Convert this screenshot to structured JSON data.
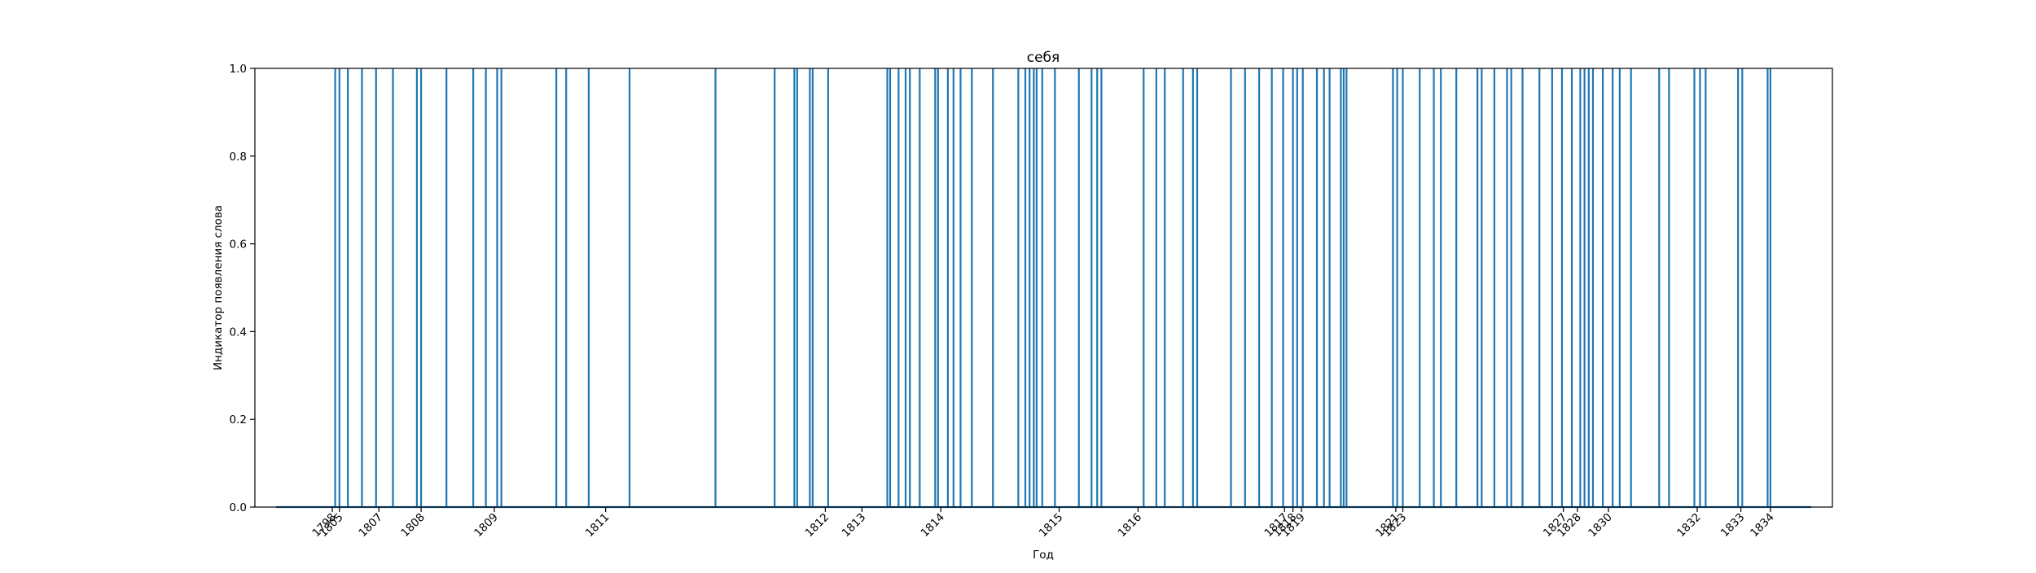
{
  "chart_data": {
    "type": "line",
    "title": "себя",
    "xlabel": "Год",
    "ylabel": "Индикатор появления слова",
    "ylim": [
      0,
      1
    ],
    "yticks": [
      "0.0",
      "0.2",
      "0.4",
      "0.6",
      "0.8",
      "1.0"
    ],
    "x_index_range": [
      -0.5,
      111.5
    ],
    "xticks": [
      {
        "index": 5,
        "label": "1798"
      },
      {
        "index": 5.5,
        "label": "1805"
      },
      {
        "index": 8.3,
        "label": "1807"
      },
      {
        "index": 11.3,
        "label": "1808"
      },
      {
        "index": 16.5,
        "label": "1809"
      },
      {
        "index": 24.4,
        "label": "1811"
      },
      {
        "index": 40,
        "label": "1812"
      },
      {
        "index": 42.6,
        "label": "1813"
      },
      {
        "index": 48.2,
        "label": "1814"
      },
      {
        "index": 56.6,
        "label": "1815"
      },
      {
        "index": 62.2,
        "label": "1816"
      },
      {
        "index": 72.6,
        "label": "1817"
      },
      {
        "index": 73.2,
        "label": "1818"
      },
      {
        "index": 73.8,
        "label": "1819"
      },
      {
        "index": 80.5,
        "label": "1821"
      },
      {
        "index": 81.0,
        "label": "1823"
      },
      {
        "index": 92.4,
        "label": "1827"
      },
      {
        "index": 93.4,
        "label": "1828"
      },
      {
        "index": 95.6,
        "label": "1830"
      },
      {
        "index": 101.9,
        "label": "1832"
      },
      {
        "index": 105.0,
        "label": "1833"
      },
      {
        "index": 107.1,
        "label": "1834"
      }
    ],
    "series": [
      {
        "color": "#1f77b4",
        "present_indices": [
          5.2,
          5.5,
          6.1,
          7.1,
          8.1,
          9.3,
          11.0,
          11.3,
          13.1,
          15.0,
          15.9,
          16.7,
          17.0,
          20.9,
          21.6,
          23.2,
          26.1,
          32.2,
          36.4,
          37.8,
          38.0,
          38.9,
          39.1,
          40.2,
          44.4,
          44.6,
          45.2,
          45.7,
          46.0,
          46.7,
          47.8,
          48.0,
          48.7,
          49.1,
          49.6,
          50.4,
          51.9,
          53.7,
          54.2,
          54.5,
          54.8,
          55.0,
          55.4,
          56.3,
          58.0,
          58.9,
          59.3,
          59.6,
          62.6,
          63.5,
          64.1,
          65.4,
          66.1,
          66.4,
          68.8,
          69.8,
          70.8,
          71.7,
          72.5,
          73.2,
          73.5,
          73.9,
          74.9,
          75.4,
          75.8,
          76.6,
          76.8,
          77.0,
          80.3,
          80.6,
          81.0,
          82.2,
          83.2,
          83.7,
          84.8,
          86.3,
          86.6,
          87.5,
          88.4,
          88.7,
          89.5,
          90.7,
          91.6,
          92.3,
          93.0,
          93.6,
          93.9,
          94.2,
          94.5,
          95.2,
          95.9,
          96.4,
          97.2,
          99.2,
          99.9,
          101.7,
          102.1,
          102.5,
          104.8,
          105.1,
          106.9,
          107.1
        ]
      }
    ]
  }
}
